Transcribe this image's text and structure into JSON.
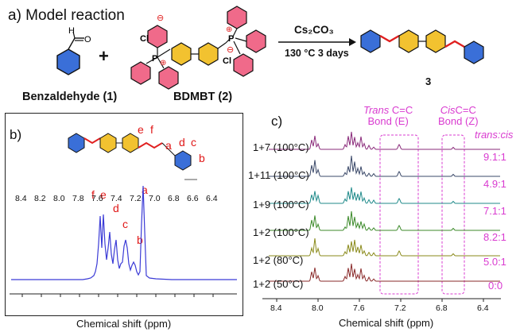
{
  "panel_a": {
    "title": "a) Model reaction",
    "reactant1_label": "Benzaldehyde (1)",
    "reactant2_label": "BDMBT (2)",
    "plus": "+",
    "reagent": "Cs₂CO₃",
    "conditions": "130 °C 3 days",
    "product_label": "3",
    "atoms": {
      "H": "H",
      "O": "O",
      "Cl": "Cl",
      "P": "P",
      "minus": "⊖",
      "plus": "⊕"
    }
  },
  "panel_b": {
    "label": "b)",
    "peak_labels": [
      "f",
      "e",
      "d",
      "c",
      "b",
      "a"
    ],
    "structure_labels": [
      "e",
      "f",
      "a",
      "d",
      "c",
      "b"
    ],
    "xlabel": "Chemical shift (ppm)",
    "xticks": [
      "8.4",
      "8.2",
      "8.0",
      "7.8",
      "7.6",
      "7.4",
      "7.2",
      "7.0",
      "6.8",
      "6.6",
      "6.4"
    ],
    "line_color": "#3b3bd6"
  },
  "panel_c": {
    "label": "c)",
    "trans_bond": {
      "line1_italic": "Trans",
      "line1_rest": " C=C",
      "line2": "Bond (E)"
    },
    "cis_bond": {
      "line1_italic": "Cis",
      "line1_rest": "C=C",
      "line2": "Bond (Z)"
    },
    "ratio_header": "trans:cis",
    "rows": [
      {
        "condition": "1+7 (100°C)",
        "ratio": "9.1:1",
        "color": "#8a2a7a"
      },
      {
        "condition": "1+11 (100°C)",
        "ratio": "4.9:1",
        "color": "#3a4868"
      },
      {
        "condition": "1+9 (100°C)",
        "ratio": "7.1:1",
        "color": "#1f8a8a"
      },
      {
        "condition": "1+2 (100°C)",
        "ratio": "8.2:1",
        "color": "#3c8a2a"
      },
      {
        "condition": "1+2 (80°C)",
        "ratio": "5.0:1",
        "color": "#8a8a1a"
      },
      {
        "condition": "1+2 (50°C)",
        "ratio": "0:0",
        "color": "#8a2a2a"
      }
    ],
    "xlabel": "Chemical shift (ppm)",
    "xticks": [
      "8.4",
      "8.0",
      "7.6",
      "7.2",
      "6.8",
      "6.4"
    ],
    "highlight_color": "#d93bd0"
  },
  "colors": {
    "blue_ring": "#3a6fd8",
    "yellow_ring": "#f2c230",
    "pink_ring": "#f06a8a",
    "vinyl": "#e02020"
  }
}
